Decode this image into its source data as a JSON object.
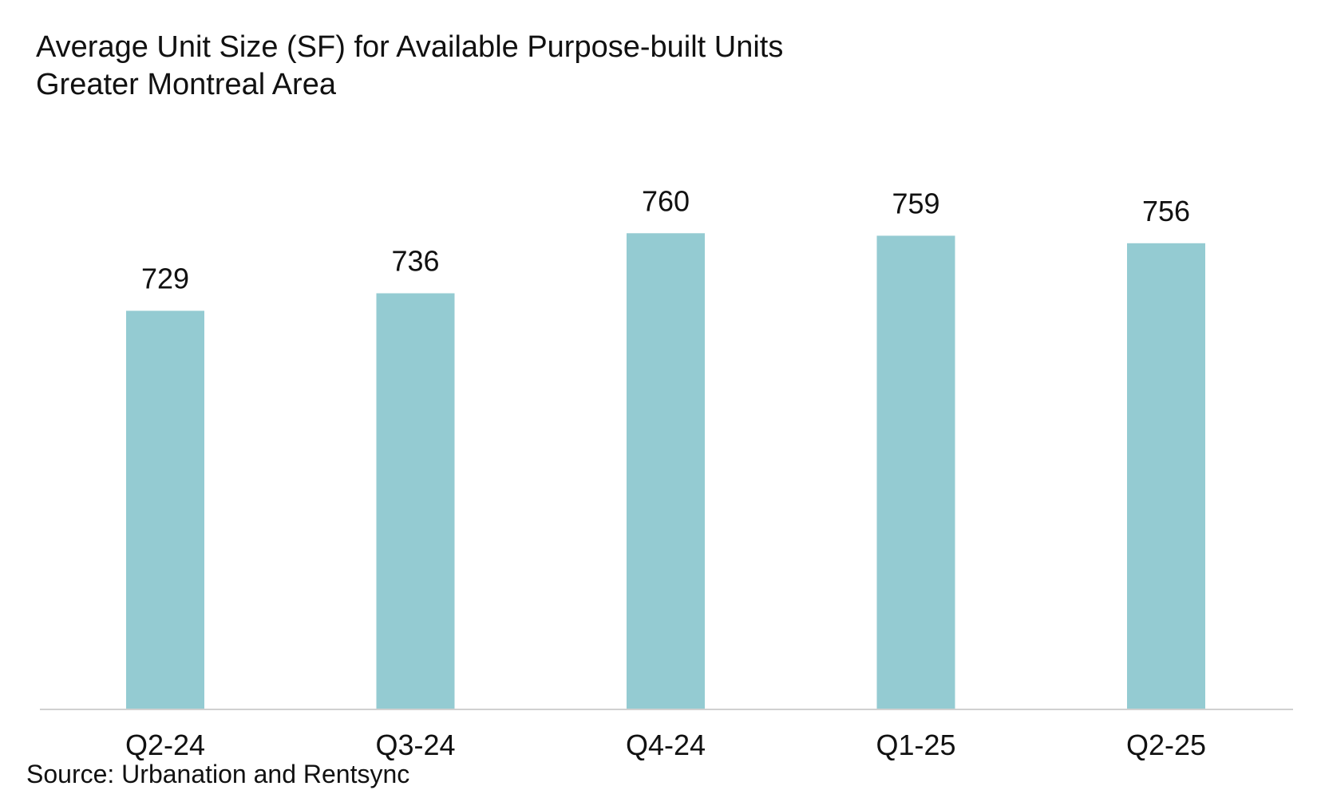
{
  "chart_data": {
    "type": "bar",
    "title": "Average Unit Size (SF) for Available Purpose-built Units",
    "subtitle": "Greater Montreal Area",
    "categories": [
      "Q2-24",
      "Q3-24",
      "Q4-24",
      "Q1-25",
      "Q2-25"
    ],
    "series": [
      {
        "values": [
          729,
          736,
          760,
          759,
          756
        ],
        "color": "#94cbd2"
      }
    ],
    "data_labels": [
      "729",
      "736",
      "760",
      "759",
      "756"
    ],
    "xlabel": "",
    "ylabel": "",
    "ylim": [
      570,
      762
    ],
    "y_axis_visible": false,
    "grid": false,
    "legend": "none",
    "axis_color": "#d0d0d0"
  },
  "source": "Source: Urbanation and Rentsync"
}
